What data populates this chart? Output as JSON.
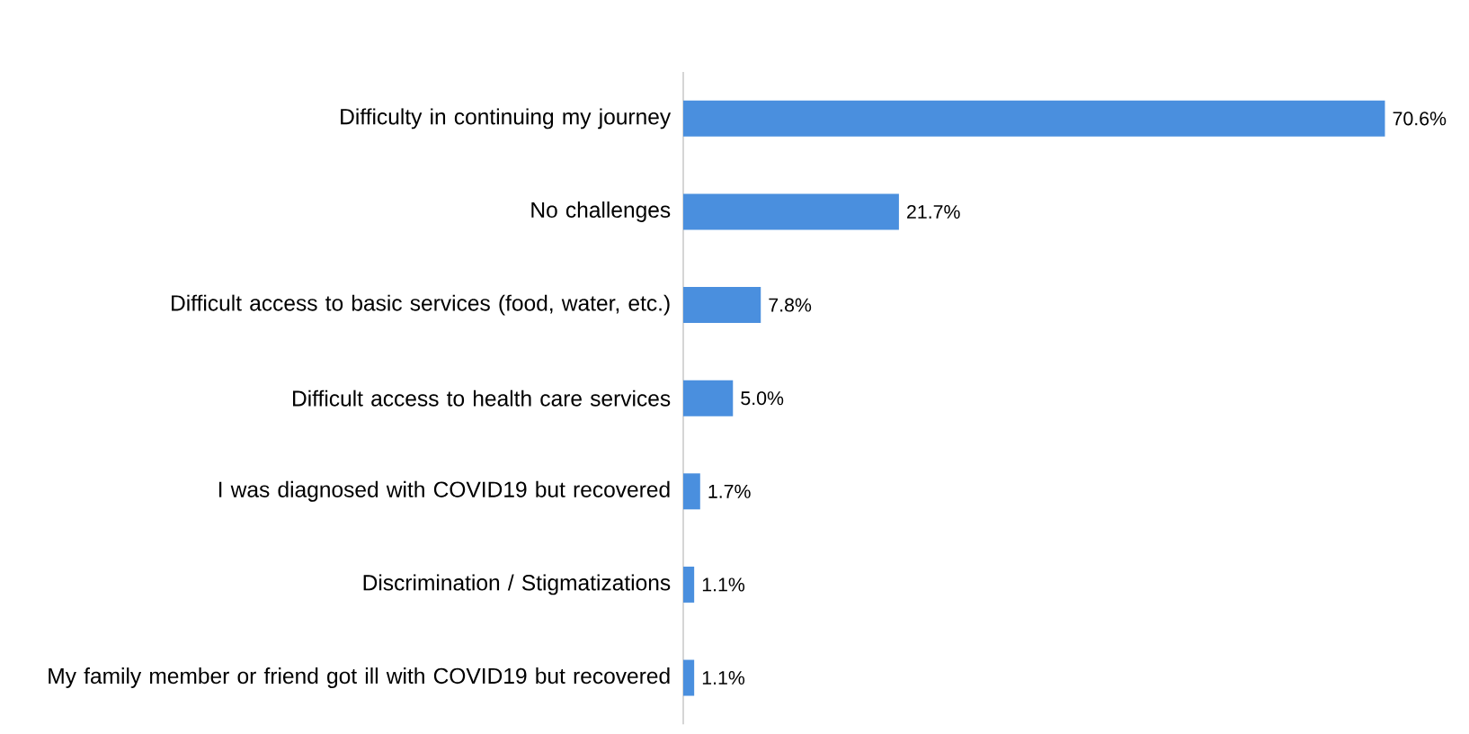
{
  "chart_data": {
    "type": "bar",
    "orientation": "horizontal",
    "categories": [
      "Difficulty in continuing my journey",
      "No challenges",
      "Difficult access to basic services (food, water, etc.)",
      "Difficult access to health care services",
      "I was diagnosed with COVID19 but recovered",
      "Discrimination / Stigmatizations",
      "My family member or friend got ill with COVID19 but recovered"
    ],
    "values": [
      70.6,
      21.7,
      7.8,
      5.0,
      1.7,
      1.1,
      1.1
    ],
    "value_labels": [
      "70.6%",
      "21.7%",
      "7.8%",
      "5.0%",
      "1.7%",
      "1.1%",
      "1.1%"
    ],
    "color": "#4a8fde"
  }
}
